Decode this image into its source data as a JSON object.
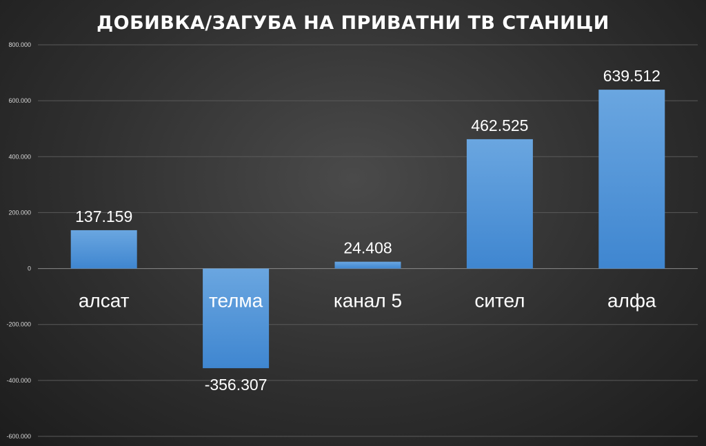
{
  "chart_data": {
    "type": "bar",
    "title": "ДОБИВКА/ЗАГУБА НА ПРИВАТНИ ТВ СТАНИЦИ",
    "categories": [
      "алсат",
      "телма",
      "канал 5",
      "сител",
      "алфа"
    ],
    "values": [
      137159,
      -356307,
      24408,
      462525,
      639512
    ],
    "value_labels": [
      "137.159",
      "-356.307",
      "24.408",
      "462.525",
      "639.512"
    ],
    "ylim": [
      -600000,
      800000
    ],
    "yticks": [
      800000,
      600000,
      400000,
      200000,
      0,
      -200000,
      -400000,
      -600000
    ],
    "ytick_labels": [
      "800.000",
      "600.000",
      "400.000",
      "200.000",
      "0",
      "-200.000",
      "-400.000",
      "-600.000"
    ],
    "grid": true,
    "bar_color": "#5b9bd5"
  }
}
